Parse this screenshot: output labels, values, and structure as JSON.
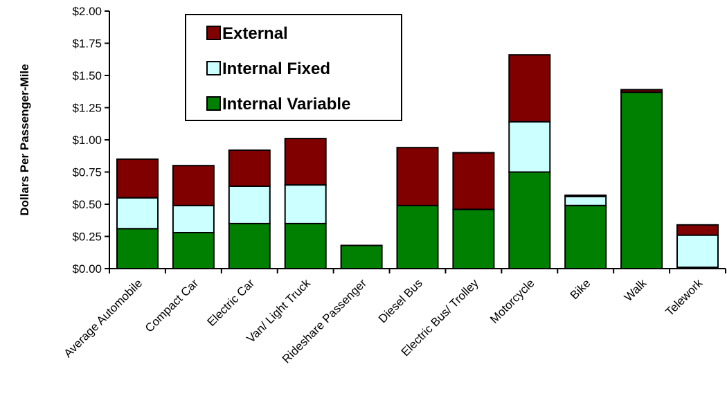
{
  "chart_data": {
    "type": "bar",
    "stacked": true,
    "title": "",
    "xlabel": "",
    "ylabel": "Dollars Per Passenger-Mile",
    "ylim": [
      0,
      2.0
    ],
    "yticks": [
      "$0.00",
      "$0.25",
      "$0.50",
      "$0.75",
      "$1.00",
      "$1.25",
      "$1.50",
      "$1.75",
      "$2.00"
    ],
    "grid": false,
    "legend_position": "top-left",
    "categories": [
      "Average Automobile",
      "Compact Car",
      "Electric Car",
      "Van/ Light Truck",
      "Rideshare Passenger",
      "Diesel Bus",
      "Electric Bus/ Trolley",
      "Motorcycle",
      "Bike",
      "Walk",
      "Telework"
    ],
    "series": [
      {
        "name": "Internal Variable",
        "color": "#008000",
        "values": [
          0.31,
          0.28,
          0.35,
          0.35,
          0.18,
          0.49,
          0.46,
          0.75,
          0.49,
          1.37,
          0.01
        ]
      },
      {
        "name": "Internal Fixed",
        "color": "#ccffff",
        "values": [
          0.24,
          0.21,
          0.29,
          0.3,
          0.0,
          0.0,
          0.0,
          0.39,
          0.07,
          0.0,
          0.25
        ]
      },
      {
        "name": "External",
        "color": "#800000",
        "values": [
          0.3,
          0.31,
          0.28,
          0.36,
          0.0,
          0.45,
          0.44,
          0.52,
          0.01,
          0.02,
          0.08
        ]
      }
    ],
    "legend_order": [
      "External",
      "Internal Fixed",
      "Internal Variable"
    ]
  }
}
